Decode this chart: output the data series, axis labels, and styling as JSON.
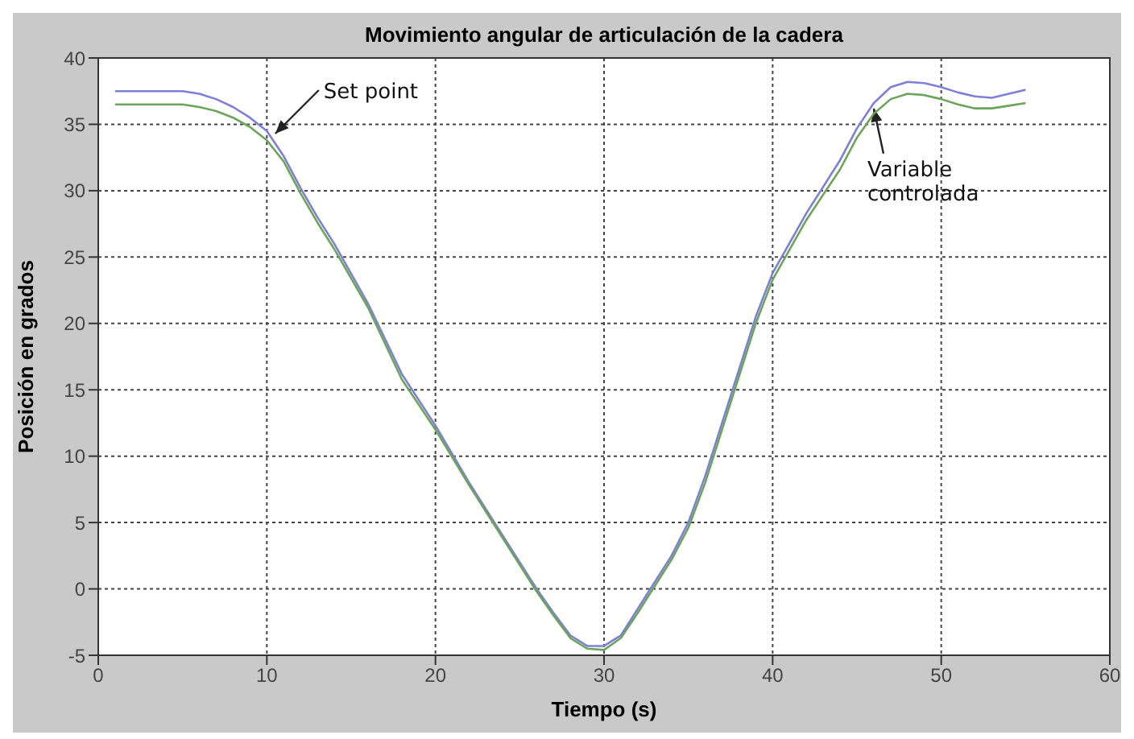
{
  "chart_data": {
    "type": "line",
    "title": "Movimiento angular de articulación de la cadera",
    "xlabel": "Tiempo (s)",
    "ylabel": "Posición en grados",
    "xlim": [
      0,
      60
    ],
    "xticks": [
      0,
      10,
      20,
      30,
      40,
      50,
      60
    ],
    "ylim": [
      -5,
      40
    ],
    "yticks": [
      -5,
      0,
      5,
      10,
      15,
      20,
      25,
      30,
      35,
      40
    ],
    "grid": true,
    "marker": "none",
    "line_style": "solid",
    "annotations": [
      {
        "text": "Set point",
        "x": 10.5,
        "y": 34.3
      },
      {
        "text": "Variable controlada",
        "x": 46,
        "y": 36.2
      }
    ],
    "series": [
      {
        "color": "#7f7fd8",
        "x": [
          1,
          3,
          5,
          6,
          7,
          8,
          9,
          10,
          11,
          12,
          13,
          14,
          16,
          18,
          20,
          22,
          24,
          26,
          27,
          28,
          29,
          30,
          31,
          32,
          33,
          34,
          35,
          36,
          37,
          38,
          39,
          40,
          42,
          44,
          45,
          46,
          47,
          48,
          49,
          50,
          51,
          52,
          53,
          54,
          55
        ],
        "values": [
          37.5,
          37.5,
          37.5,
          37.3,
          36.9,
          36.3,
          35.5,
          34.5,
          32.6,
          30.2,
          28,
          26,
          21.5,
          16.2,
          12.3,
          8,
          4,
          0,
          -1.8,
          -3.5,
          -4.3,
          -4.3,
          -3.5,
          -1.5,
          0.5,
          2.5,
          5,
          8.5,
          12.5,
          16.5,
          20.5,
          23.8,
          28.3,
          32.3,
          34.7,
          36.6,
          37.8,
          38.2,
          38.1,
          37.8,
          37.4,
          37.1,
          37,
          37.3,
          37.6
        ]
      },
      {
        "color": "#6aa55a",
        "x": [
          1,
          3,
          5,
          6,
          7,
          8,
          9,
          10,
          11,
          12,
          13,
          14,
          16,
          18,
          20,
          22,
          24,
          26,
          27,
          28,
          29,
          30,
          31,
          32,
          33,
          34,
          35,
          36,
          37,
          38,
          39,
          40,
          42,
          44,
          45,
          46,
          47,
          48,
          49,
          50,
          51,
          52,
          53,
          54,
          55
        ],
        "values": [
          36.5,
          36.5,
          36.5,
          36.3,
          36,
          35.5,
          34.8,
          33.8,
          32.2,
          29.8,
          27.6,
          25.6,
          21.2,
          15.8,
          12,
          7.8,
          3.8,
          -0.2,
          -2,
          -3.7,
          -4.5,
          -4.6,
          -3.7,
          -1.8,
          0.2,
          2.2,
          4.6,
          8,
          12,
          16,
          20,
          23.3,
          27.8,
          31.6,
          34,
          35.8,
          36.9,
          37.3,
          37.2,
          36.9,
          36.5,
          36.2,
          36.2,
          36.4,
          36.6
        ]
      }
    ]
  }
}
